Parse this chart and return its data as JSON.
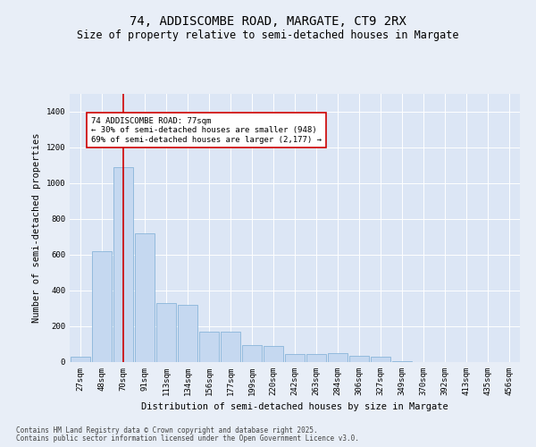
{
  "title1": "74, ADDISCOMBE ROAD, MARGATE, CT9 2RX",
  "title2": "Size of property relative to semi-detached houses in Margate",
  "xlabel": "Distribution of semi-detached houses by size in Margate",
  "ylabel": "Number of semi-detached properties",
  "categories": [
    "27sqm",
    "48sqm",
    "70sqm",
    "91sqm",
    "113sqm",
    "134sqm",
    "156sqm",
    "177sqm",
    "199sqm",
    "220sqm",
    "242sqm",
    "263sqm",
    "284sqm",
    "306sqm",
    "327sqm",
    "349sqm",
    "370sqm",
    "392sqm",
    "413sqm",
    "435sqm",
    "456sqm"
  ],
  "values": [
    30,
    620,
    1090,
    720,
    330,
    320,
    170,
    170,
    95,
    90,
    45,
    45,
    50,
    35,
    30,
    5,
    0,
    0,
    0,
    0,
    0
  ],
  "bar_color": "#c5d8f0",
  "bar_edge_color": "#7aadd4",
  "annotation_text": "74 ADDISCOMBE ROAD: 77sqm\n← 30% of semi-detached houses are smaller (948)\n69% of semi-detached houses are larger (2,177) →",
  "annotation_box_color": "#ffffff",
  "annotation_box_edge": "#cc0000",
  "vline_color": "#cc0000",
  "ylim": [
    0,
    1500
  ],
  "yticks": [
    0,
    200,
    400,
    600,
    800,
    1000,
    1200,
    1400
  ],
  "background_color": "#e8eef7",
  "plot_bg_color": "#dce6f5",
  "grid_color": "#ffffff",
  "footer1": "Contains HM Land Registry data © Crown copyright and database right 2025.",
  "footer2": "Contains public sector information licensed under the Open Government Licence v3.0.",
  "title1_fontsize": 10,
  "title2_fontsize": 8.5,
  "axis_label_fontsize": 7.5,
  "tick_fontsize": 6.5,
  "annotation_fontsize": 6.5,
  "footer_fontsize": 5.5,
  "vline_x_index": 2
}
